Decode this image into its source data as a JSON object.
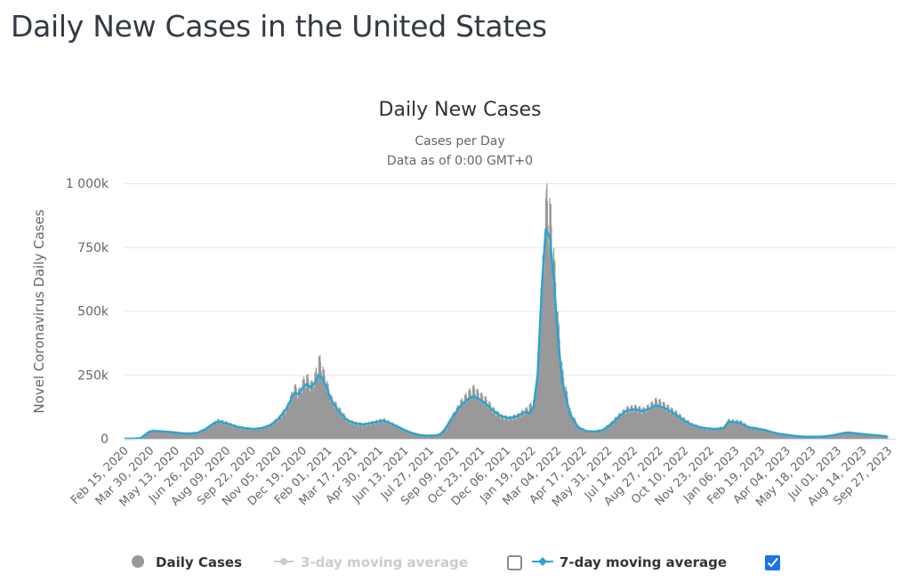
{
  "page": {
    "title": "Daily New Cases in the United States"
  },
  "chart_data": {
    "type": "bar",
    "title": "Daily New Cases",
    "subtitle_lines": [
      "Cases per Day",
      "Data as of 0:00 GMT+0"
    ],
    "xlabel": "",
    "ylabel": "Novel Coronavirus Daily Cases",
    "ylim": [
      0,
      1000000
    ],
    "yticks": [
      0,
      250000,
      500000,
      750000,
      1000000
    ],
    "ytick_labels": [
      "0",
      "250k",
      "500k",
      "750k",
      "1 000k"
    ],
    "x_start": "2020-02-15",
    "x_end": "2023-10-10",
    "xtick_labels": [
      "Feb 15, 2020",
      "Mar 30, 2020",
      "May 13, 2020",
      "Jun 26, 2020",
      "Aug 09, 2020",
      "Sep 22, 2020",
      "Nov 05, 2020",
      "Dec 19, 2020",
      "Feb 01, 2021",
      "Mar 17, 2021",
      "Apr 30, 2021",
      "Jun 13, 2021",
      "Jul 27, 2021",
      "Sep 09, 2021",
      "Oct 23, 2021",
      "Dec 06, 2021",
      "Jan 19, 2022",
      "Mar 04, 2022",
      "Apr 17, 2022",
      "May 31, 2022",
      "Jul 14, 2022",
      "Aug 27, 2022",
      "Oct 10, 2022",
      "Nov 23, 2022",
      "Jan 06, 2023",
      "Feb 19, 2023",
      "Apr 04, 2023",
      "May 18, 2023",
      "Jul 01, 2023",
      "Aug 14, 2023",
      "Sep 27, 2023"
    ],
    "grid": true,
    "legend_position": "bottom",
    "series": [
      {
        "name": "Daily Cases",
        "type": "bar",
        "color": "#999999",
        "visible": true,
        "note": "weekly sampled daily values (day offset from x_start, cases)",
        "points": [
          [
            0,
            0
          ],
          [
            14,
            20
          ],
          [
            28,
            1500
          ],
          [
            42,
            25000
          ],
          [
            49,
            31000
          ],
          [
            56,
            29000
          ],
          [
            70,
            28000
          ],
          [
            84,
            25000
          ],
          [
            98,
            22000
          ],
          [
            112,
            20000
          ],
          [
            126,
            23000
          ],
          [
            140,
            38000
          ],
          [
            154,
            60000
          ],
          [
            161,
            70000
          ],
          [
            168,
            66000
          ],
          [
            182,
            56000
          ],
          [
            196,
            45000
          ],
          [
            210,
            40000
          ],
          [
            224,
            38000
          ],
          [
            238,
            42000
          ],
          [
            252,
            55000
          ],
          [
            266,
            80000
          ],
          [
            280,
            120000
          ],
          [
            287,
            160000
          ],
          [
            294,
            195000
          ],
          [
            301,
            175000
          ],
          [
            308,
            215000
          ],
          [
            315,
            230000
          ],
          [
            322,
            200000
          ],
          [
            329,
            240000
          ],
          [
            336,
            300000
          ],
          [
            343,
            250000
          ],
          [
            350,
            200000
          ],
          [
            357,
            150000
          ],
          [
            371,
            110000
          ],
          [
            385,
            70000
          ],
          [
            399,
            60000
          ],
          [
            413,
            55000
          ],
          [
            427,
            62000
          ],
          [
            441,
            70000
          ],
          [
            448,
            72000
          ],
          [
            455,
            65000
          ],
          [
            469,
            50000
          ],
          [
            483,
            35000
          ],
          [
            497,
            22000
          ],
          [
            511,
            14000
          ],
          [
            525,
            12000
          ],
          [
            539,
            13000
          ],
          [
            546,
            20000
          ],
          [
            553,
            40000
          ],
          [
            567,
            90000
          ],
          [
            581,
            140000
          ],
          [
            595,
            175000
          ],
          [
            602,
            190000
          ],
          [
            609,
            175000
          ],
          [
            623,
            150000
          ],
          [
            637,
            110000
          ],
          [
            651,
            85000
          ],
          [
            665,
            80000
          ],
          [
            679,
            90000
          ],
          [
            693,
            110000
          ],
          [
            700,
            125000
          ],
          [
            707,
            140000
          ],
          [
            714,
            310000
          ],
          [
            721,
            600000
          ],
          [
            728,
            900000
          ],
          [
            735,
            850000
          ],
          [
            742,
            650000
          ],
          [
            749,
            420000
          ],
          [
            756,
            250000
          ],
          [
            770,
            100000
          ],
          [
            784,
            45000
          ],
          [
            798,
            30000
          ],
          [
            812,
            28000
          ],
          [
            826,
            35000
          ],
          [
            840,
            60000
          ],
          [
            854,
            90000
          ],
          [
            868,
            115000
          ],
          [
            882,
            120000
          ],
          [
            896,
            110000
          ],
          [
            910,
            130000
          ],
          [
            917,
            145000
          ],
          [
            924,
            140000
          ],
          [
            938,
            120000
          ],
          [
            952,
            100000
          ],
          [
            966,
            75000
          ],
          [
            980,
            55000
          ],
          [
            994,
            45000
          ],
          [
            1008,
            40000
          ],
          [
            1022,
            38000
          ],
          [
            1036,
            45000
          ],
          [
            1043,
            70000
          ],
          [
            1050,
            68000
          ],
          [
            1064,
            65000
          ],
          [
            1078,
            45000
          ],
          [
            1092,
            40000
          ],
          [
            1106,
            35000
          ],
          [
            1120,
            25000
          ],
          [
            1134,
            18000
          ],
          [
            1148,
            14000
          ],
          [
            1162,
            10000
          ],
          [
            1176,
            8000
          ],
          [
            1190,
            8000
          ],
          [
            1204,
            8000
          ],
          [
            1218,
            12000
          ],
          [
            1232,
            18000
          ],
          [
            1246,
            25000
          ],
          [
            1253,
            26000
          ],
          [
            1267,
            20000
          ],
          [
            1281,
            17000
          ],
          [
            1295,
            15000
          ],
          [
            1309,
            12000
          ],
          [
            1318,
            10000
          ]
        ]
      },
      {
        "name": "3-day moving average",
        "type": "line",
        "color": "#cccccc",
        "visible": false
      },
      {
        "name": "7-day moving average",
        "type": "line",
        "color": "#2ba5cf",
        "visible": true,
        "note": "weekly sampled (day offset from x_start, cases)",
        "points": [
          [
            0,
            0
          ],
          [
            14,
            50
          ],
          [
            28,
            2000
          ],
          [
            42,
            26000
          ],
          [
            49,
            31000
          ],
          [
            56,
            30000
          ],
          [
            70,
            28000
          ],
          [
            84,
            25000
          ],
          [
            98,
            22000
          ],
          [
            112,
            20000
          ],
          [
            126,
            23000
          ],
          [
            140,
            38000
          ],
          [
            154,
            60000
          ],
          [
            161,
            67000
          ],
          [
            168,
            65000
          ],
          [
            182,
            56000
          ],
          [
            196,
            46000
          ],
          [
            210,
            41000
          ],
          [
            224,
            38000
          ],
          [
            238,
            42000
          ],
          [
            252,
            53000
          ],
          [
            266,
            78000
          ],
          [
            280,
            118000
          ],
          [
            287,
            150000
          ],
          [
            294,
            180000
          ],
          [
            301,
            175000
          ],
          [
            308,
            200000
          ],
          [
            315,
            215000
          ],
          [
            322,
            200000
          ],
          [
            329,
            220000
          ],
          [
            336,
            250000
          ],
          [
            343,
            235000
          ],
          [
            350,
            195000
          ],
          [
            357,
            150000
          ],
          [
            371,
            105000
          ],
          [
            385,
            72000
          ],
          [
            399,
            60000
          ],
          [
            413,
            56000
          ],
          [
            427,
            62000
          ],
          [
            441,
            68000
          ],
          [
            448,
            70000
          ],
          [
            455,
            64000
          ],
          [
            469,
            50000
          ],
          [
            483,
            35000
          ],
          [
            497,
            22000
          ],
          [
            511,
            14000
          ],
          [
            525,
            12000
          ],
          [
            539,
            13000
          ],
          [
            546,
            18000
          ],
          [
            553,
            35000
          ],
          [
            567,
            85000
          ],
          [
            581,
            130000
          ],
          [
            595,
            158000
          ],
          [
            602,
            165000
          ],
          [
            609,
            160000
          ],
          [
            623,
            140000
          ],
          [
            637,
            110000
          ],
          [
            651,
            88000
          ],
          [
            665,
            80000
          ],
          [
            679,
            88000
          ],
          [
            693,
            105000
          ],
          [
            700,
            100000
          ],
          [
            707,
            125000
          ],
          [
            714,
            250000
          ],
          [
            721,
            580000
          ],
          [
            728,
            820000
          ],
          [
            735,
            790000
          ],
          [
            742,
            620000
          ],
          [
            749,
            400000
          ],
          [
            756,
            230000
          ],
          [
            770,
            95000
          ],
          [
            784,
            45000
          ],
          [
            798,
            30000
          ],
          [
            812,
            28000
          ],
          [
            826,
            33000
          ],
          [
            840,
            55000
          ],
          [
            854,
            85000
          ],
          [
            868,
            110000
          ],
          [
            882,
            115000
          ],
          [
            896,
            108000
          ],
          [
            910,
            120000
          ],
          [
            917,
            130000
          ],
          [
            924,
            128000
          ],
          [
            938,
            115000
          ],
          [
            952,
            95000
          ],
          [
            966,
            72000
          ],
          [
            980,
            55000
          ],
          [
            994,
            45000
          ],
          [
            1008,
            40000
          ],
          [
            1022,
            38000
          ],
          [
            1036,
            42000
          ],
          [
            1043,
            65000
          ],
          [
            1050,
            65000
          ],
          [
            1064,
            62000
          ],
          [
            1078,
            45000
          ],
          [
            1092,
            40000
          ],
          [
            1106,
            34000
          ],
          [
            1120,
            25000
          ],
          [
            1134,
            18000
          ],
          [
            1148,
            14000
          ],
          [
            1162,
            10000
          ],
          [
            1176,
            8000
          ],
          [
            1190,
            8000
          ],
          [
            1204,
            8000
          ],
          [
            1218,
            11000
          ],
          [
            1232,
            17000
          ],
          [
            1246,
            23000
          ],
          [
            1253,
            24000
          ],
          [
            1267,
            20000
          ],
          [
            1281,
            17000
          ],
          [
            1295,
            14000
          ],
          [
            1309,
            11000
          ],
          [
            1318,
            9000
          ]
        ]
      }
    ]
  },
  "legend": {
    "items": [
      {
        "label": "Daily Cases",
        "color": "#999999",
        "active": true,
        "icon": "circle-icon"
      },
      {
        "label": "3-day moving average",
        "color": "#cccccc",
        "active": false,
        "icon": "line-marker-icon",
        "checkbox": false
      },
      {
        "label": "7-day moving average",
        "color": "#2ba5cf",
        "active": true,
        "icon": "line-marker-icon",
        "checkbox": true
      }
    ]
  }
}
